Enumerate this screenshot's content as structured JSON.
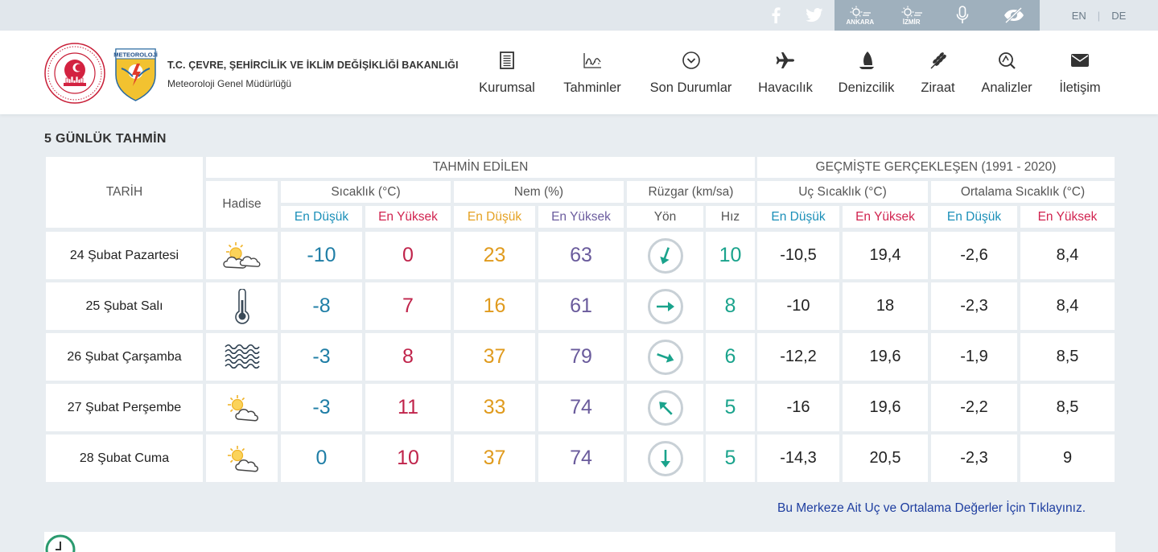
{
  "topbar": {
    "social": [
      {
        "icon": "facebook-icon"
      },
      {
        "icon": "twitter-icon"
      }
    ],
    "quick": [
      {
        "icon": "ankara-weather-icon",
        "label": "ANKARA"
      },
      {
        "icon": "izmir-weather-icon",
        "label": "İZMİR"
      },
      {
        "icon": "microphone-icon",
        "label": ""
      },
      {
        "icon": "low-vision-icon",
        "label": ""
      }
    ],
    "lang": {
      "en": "EN",
      "sep": "|",
      "de": "DE"
    }
  },
  "header": {
    "org_name": "T.C. ÇEVRE, ŞEHİRCİLİK VE İKLİM DEĞİŞİKLİĞİ BAKANLIĞI",
    "org_sub": "Meteoroloji Genel Müdürlüğü",
    "logo_text": "METEOROLOJİ",
    "nav": [
      {
        "label": "Kurumsal",
        "icon": "document-icon"
      },
      {
        "label": "Tahminler",
        "icon": "chart-icon"
      },
      {
        "label": "Son Durumlar",
        "icon": "chevron-circle-icon"
      },
      {
        "label": "Havacılık",
        "icon": "airplane-icon"
      },
      {
        "label": "Denizcilik",
        "icon": "sailboat-icon"
      },
      {
        "label": "Ziraat",
        "icon": "wheat-icon"
      },
      {
        "label": "Analizler",
        "icon": "analysis-icon"
      },
      {
        "label": "İletişim",
        "icon": "envelope-icon"
      }
    ]
  },
  "section_title": "5 GÜNLÜK TAHMİN",
  "table": {
    "col_tarih": "TARİH",
    "col_hadise": "Hadise",
    "group_forecast": "TAHMİN EDİLEN",
    "group_history": "GEÇMİŞTE GERÇEKLEŞEN (1991 - 2020)",
    "sub_temp": "Sıcaklık (°C)",
    "sub_humidity": "Nem (%)",
    "sub_wind": "Rüzgar (km/sa)",
    "sub_extreme": "Uç Sıcaklık (°C)",
    "sub_average": "Ortalama Sıcaklık (°C)",
    "low": "En Düşük",
    "high": "En Yüksek",
    "dir": "Yön",
    "speed": "Hız",
    "rows": [
      {
        "date": "24 Şubat Pazartesi",
        "icon": "partly-cloudy-icon",
        "t_low": "-10",
        "t_high": "0",
        "h_low": "23",
        "h_high": "63",
        "wind_deg": 200,
        "wind_speed": "10",
        "x_low": "-10,5",
        "x_high": "19,4",
        "a_low": "-2,6",
        "a_high": "8,4"
      },
      {
        "date": "25 Şubat Salı",
        "icon": "thermometer-icon",
        "t_low": "-8",
        "t_high": "7",
        "h_low": "16",
        "h_high": "61",
        "wind_deg": 90,
        "wind_speed": "8",
        "x_low": "-10",
        "x_high": "18",
        "a_low": "-2,3",
        "a_high": "8,4"
      },
      {
        "date": "26 Şubat Çarşamba",
        "icon": "waves-icon",
        "t_low": "-3",
        "t_high": "8",
        "h_low": "37",
        "h_high": "79",
        "wind_deg": 110,
        "wind_speed": "6",
        "x_low": "-12,2",
        "x_high": "19,6",
        "a_low": "-1,9",
        "a_high": "8,5"
      },
      {
        "date": "27 Şubat Perşembe",
        "icon": "partly-cloudy-icon",
        "t_low": "-3",
        "t_high": "11",
        "h_low": "33",
        "h_high": "74",
        "wind_deg": 315,
        "wind_speed": "5",
        "x_low": "-16",
        "x_high": "19,6",
        "a_low": "-2,2",
        "a_high": "8,5"
      },
      {
        "date": "28 Şubat Cuma",
        "icon": "partly-cloudy-icon",
        "t_low": "0",
        "t_high": "10",
        "h_low": "37",
        "h_high": "74",
        "wind_deg": 180,
        "wind_speed": "5",
        "x_low": "-14,3",
        "x_high": "20,5",
        "a_low": "-2,3",
        "a_high": "9"
      }
    ]
  },
  "link_text": "Bu Merkeze Ait Uç ve Ortalama Değerler İçin Tıklayınız.",
  "colors": {
    "low": "#1f7ea6",
    "high": "#c0244b",
    "humidity_low": "#e09b1e",
    "humidity_high": "#6a5b9c",
    "wind": "#1aa38c",
    "link": "#1e3ea0"
  }
}
